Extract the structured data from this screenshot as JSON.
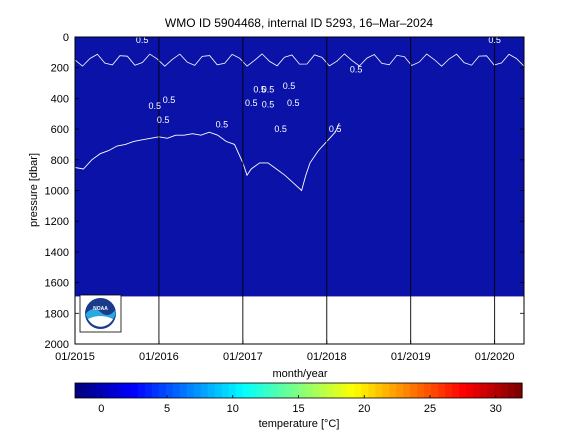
{
  "chart_data": {
    "type": "heatmap",
    "title": "WMO ID 5904468, internal ID 5293, 16–Mar–2024",
    "xlabel": "month/year",
    "ylabel": "pressure [dbar]",
    "x_ticks": [
      "01/2015",
      "01/2016",
      "01/2017",
      "01/2018",
      "01/2019",
      "01/2020"
    ],
    "x_tick_years": [
      2015,
      2016,
      2017,
      2018,
      2019,
      2020
    ],
    "xlim": [
      2015.0,
      2020.35
    ],
    "y_ticks": [
      0,
      200,
      400,
      600,
      800,
      1000,
      1200,
      1400,
      1600,
      1800,
      2000
    ],
    "ylim": [
      0,
      2000
    ],
    "y_reversed": true,
    "data_extent": {
      "x": [
        2015.0,
        2020.35
      ],
      "y": [
        0,
        1690
      ]
    },
    "contour_levels": [
      0.5
    ],
    "contour_labels": [
      {
        "text": "0.5",
        "x": 2020.0,
        "y": 40
      },
      {
        "text": "0.5",
        "x": 2015.8,
        "y": 40
      },
      {
        "text": "0.5",
        "x": 2018.35,
        "y": 230
      },
      {
        "text": "0.5",
        "x": 2017.55,
        "y": 340
      },
      {
        "text": "0.5",
        "x": 2017.6,
        "y": 450
      },
      {
        "text": "0.5",
        "x": 2016.12,
        "y": 430
      },
      {
        "text": "0.5",
        "x": 2015.95,
        "y": 470
      },
      {
        "text": "0.5",
        "x": 2016.05,
        "y": 560
      },
      {
        "text": "0.5",
        "x": 2017.2,
        "y": 360
      },
      {
        "text": "0.5",
        "x": 2017.3,
        "y": 360
      },
      {
        "text": "0.5",
        "x": 2017.1,
        "y": 450
      },
      {
        "text": "0.5",
        "x": 2017.3,
        "y": 460
      },
      {
        "text": "0.5",
        "x": 2016.75,
        "y": 590
      },
      {
        "text": "0.5",
        "x": 2017.45,
        "y": 620
      },
      {
        "text": "0.5",
        "x": 2018.1,
        "y": 620
      }
    ],
    "contour_boundary": [
      [
        2015.0,
        850
      ],
      [
        2015.1,
        860
      ],
      [
        2015.2,
        800
      ],
      [
        2015.3,
        760
      ],
      [
        2015.4,
        740
      ],
      [
        2015.5,
        710
      ],
      [
        2015.6,
        700
      ],
      [
        2015.7,
        680
      ],
      [
        2015.8,
        670
      ],
      [
        2015.9,
        660
      ],
      [
        2016.0,
        650
      ],
      [
        2016.1,
        660
      ],
      [
        2016.2,
        640
      ],
      [
        2016.3,
        640
      ],
      [
        2016.4,
        630
      ],
      [
        2016.5,
        640
      ],
      [
        2016.6,
        620
      ],
      [
        2016.7,
        640
      ],
      [
        2016.8,
        680
      ],
      [
        2016.9,
        700
      ],
      [
        2017.0,
        820
      ],
      [
        2017.05,
        900
      ],
      [
        2017.1,
        860
      ],
      [
        2017.2,
        820
      ],
      [
        2017.3,
        820
      ],
      [
        2017.4,
        860
      ],
      [
        2017.5,
        900
      ],
      [
        2017.6,
        950
      ],
      [
        2017.7,
        1000
      ],
      [
        2017.75,
        900
      ],
      [
        2017.8,
        820
      ],
      [
        2017.9,
        740
      ],
      [
        2018.0,
        680
      ],
      [
        2018.1,
        620
      ],
      [
        2018.15,
        560
      ]
    ],
    "colorbar": {
      "label": "temperature [°C]",
      "ticks": [
        0,
        5,
        10,
        15,
        20,
        25,
        30
      ],
      "range": [
        -2,
        32
      ],
      "colormap": "jet"
    },
    "field_color": "#0b12a8",
    "contour_color": "#ffffff",
    "grid": false,
    "vertical_lines_at_ticks": true,
    "logo": "noaa-logo"
  }
}
